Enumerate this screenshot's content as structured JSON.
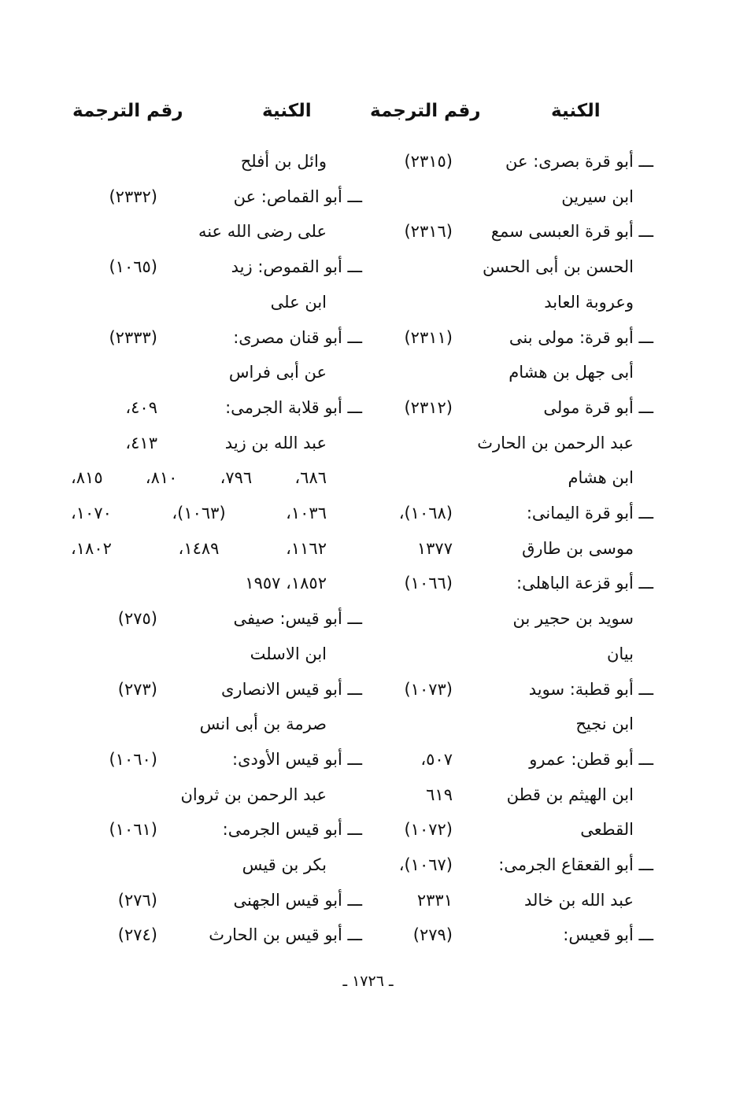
{
  "headers": {
    "right_name": "الكنية",
    "right_num": "رقم الترجمة",
    "left_name": "الكنية",
    "left_num": "رقم الترجمة"
  },
  "right_column": [
    {
      "name": "ـــ أبو قرة بصرى: عن",
      "num": "(٢٣١٥)",
      "dash": true
    },
    {
      "name": "ابن سيرين",
      "num": ""
    },
    {
      "name": "ـــ أبو قرة العبسى سمع",
      "num": "(٢٣١٦)",
      "dash": true
    },
    {
      "name": "الحسن بن أبى الحسن",
      "num": ""
    },
    {
      "name": "وعروبة العابد",
      "num": ""
    },
    {
      "name": "ـــ أبو قرة: مولى بنى",
      "num": "(٢٣١١)",
      "dash": true
    },
    {
      "name": "أبى جهل بن هشام",
      "num": ""
    },
    {
      "name": "ـــ أبو قرة مولى",
      "num": "(٢٣١٢)",
      "dash": true
    },
    {
      "name": "عبد الرحمن بن الحارث",
      "num": ""
    },
    {
      "name": "ابن هشام",
      "num": ""
    },
    {
      "name": "ـــ أبو قرة اليمانى:",
      "num": "(١٠٦٨)،",
      "dash": true
    },
    {
      "name": "موسى بن طارق",
      "num": "١٣٧٧"
    },
    {
      "name": "ـــ أبو قزعة الباهلى:",
      "num": "(١٠٦٦)",
      "dash": true
    },
    {
      "name": "سويد بن حجير بن",
      "num": ""
    },
    {
      "name": "بيان",
      "num": ""
    },
    {
      "name": "ـــ أبو قطبة: سويد",
      "num": "(١٠٧٣)",
      "dash": true
    },
    {
      "name": "ابن نجيح",
      "num": ""
    },
    {
      "name": "ـــ أبو قطن: عمرو",
      "num": "٥٠٧،",
      "dash": true
    },
    {
      "name": "ابن الهيثم بن قطن",
      "num": "٦١٩"
    },
    {
      "name": "القطعى",
      "num": "(١٠٧٢)"
    },
    {
      "name": "ـــ أبو القعقاع الجرمى:",
      "num": "(١٠٦٧)،",
      "dash": true
    },
    {
      "name": "عبد الله بن خالد",
      "num": "٢٣٣١"
    },
    {
      "name": "ـــ أبو قعيس:",
      "num": "(٢٧٩)",
      "dash": true
    }
  ],
  "left_column": [
    {
      "name": "وائل بن أفلح",
      "num": ""
    },
    {
      "name": "ـــ أبو القماص: عن",
      "num": "(٢٣٣٢)",
      "dash": true
    },
    {
      "name": "على رضى الله عنه",
      "num": ""
    },
    {
      "name": "ـــ أبو القموص: زيد",
      "num": "(١٠٦٥)",
      "dash": true
    },
    {
      "name": "ابن على",
      "num": ""
    },
    {
      "name": "ـــ أبو قنان مصرى:",
      "num": "(٢٣٣٣)",
      "dash": true
    },
    {
      "name": "عن أبى فراس",
      "num": ""
    },
    {
      "name": "ـــ أبو قلابة الجرمى:",
      "num": "٤٠٩،",
      "dash": true
    },
    {
      "name": "عبد الله بن زيد",
      "num": "٤١٣،"
    },
    {
      "span": "٦٨٦، ٧٩٦، ٨١٠، ٨١٥،"
    },
    {
      "span": "١٠٣٦، (١٠٦٣)، ١٠٧٠،"
    },
    {
      "span": "١١٦٢، ١٤٨٩، ١٨٠٢،"
    },
    {
      "span": "١٨٥٢، ١٩٥٧",
      "last": true
    },
    {
      "name": "ـــ أبو قيس: صيفى",
      "num": "(٢٧٥)",
      "dash": true
    },
    {
      "name": "ابن الاسلت",
      "num": ""
    },
    {
      "name": "ـــ أبو قيس الانصارى",
      "num": "(٢٧٣)",
      "dash": true
    },
    {
      "name": "صرمة بن أبى انس",
      "num": ""
    },
    {
      "name": "ـــ أبو قيس الأودى:",
      "num": "(١٠٦٠)",
      "dash": true
    },
    {
      "name": "عبد الرحمن بن ثروان",
      "num": ""
    },
    {
      "name": "ـــ أبو قيس الجرمى:",
      "num": "(١٠٦١)",
      "dash": true
    },
    {
      "name": "بكر بن قيس",
      "num": ""
    },
    {
      "name": "ـــ أبو قيس الجهنى",
      "num": "(٢٧٦)",
      "dash": true
    },
    {
      "name": "ـــ أبو قيس بن الحارث",
      "num": "(٢٧٤)",
      "dash": true
    }
  ],
  "footer": {
    "page_number": "ـ ١٧٢٦ ـ"
  }
}
